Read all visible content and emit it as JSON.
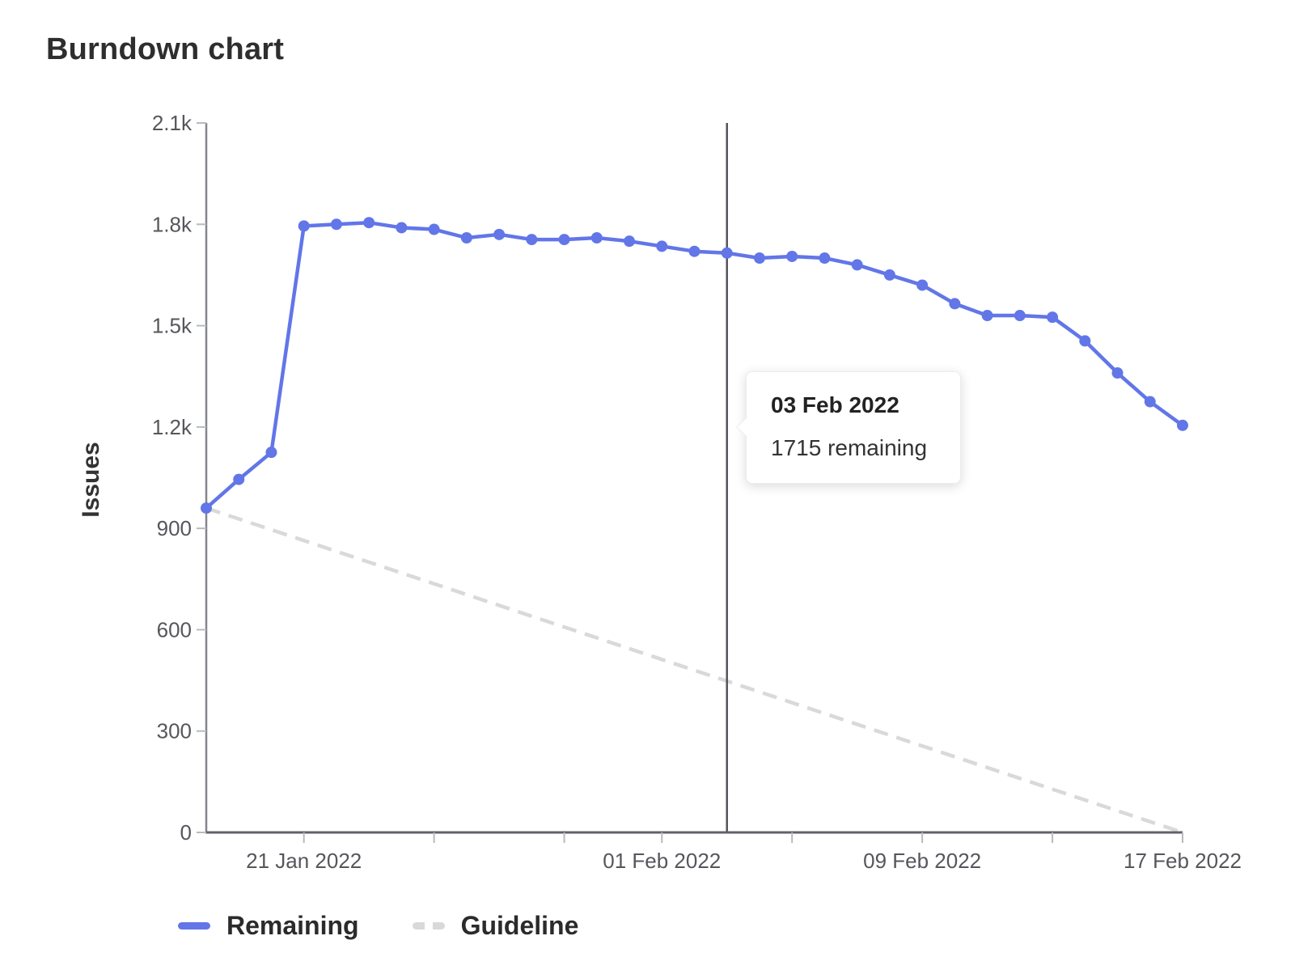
{
  "page": {
    "title": "Burndown chart"
  },
  "chart_data": {
    "type": "line",
    "title": "Burndown chart",
    "xlabel": "",
    "ylabel": "Issues",
    "ylim": [
      0,
      2100
    ],
    "grid": false,
    "legend_position": "bottom-left",
    "categories": [
      "18 Jan 2022",
      "19 Jan 2022",
      "20 Jan 2022",
      "21 Jan 2022",
      "22 Jan 2022",
      "23 Jan 2022",
      "24 Jan 2022",
      "25 Jan 2022",
      "26 Jan 2022",
      "27 Jan 2022",
      "28 Jan 2022",
      "29 Jan 2022",
      "30 Jan 2022",
      "31 Jan 2022",
      "01 Feb 2022",
      "02 Feb 2022",
      "03 Feb 2022",
      "04 Feb 2022",
      "05 Feb 2022",
      "06 Feb 2022",
      "07 Feb 2022",
      "08 Feb 2022",
      "09 Feb 2022",
      "10 Feb 2022",
      "11 Feb 2022",
      "12 Feb 2022",
      "13 Feb 2022",
      "14 Feb 2022",
      "15 Feb 2022",
      "16 Feb 2022",
      "17 Feb 2022"
    ],
    "y_ticks": [
      {
        "value": 0,
        "label": "0"
      },
      {
        "value": 300,
        "label": "300"
      },
      {
        "value": 600,
        "label": "600"
      },
      {
        "value": 900,
        "label": "900"
      },
      {
        "value": 1200,
        "label": "1.2k"
      },
      {
        "value": 1500,
        "label": "1.5k"
      },
      {
        "value": 1800,
        "label": "1.8k"
      },
      {
        "value": 2100,
        "label": "2.1k"
      }
    ],
    "x_ticks": [
      {
        "index": 3,
        "label": "21 Jan 2022"
      },
      {
        "index": 7,
        "label": ""
      },
      {
        "index": 11,
        "label": ""
      },
      {
        "index": 14,
        "label": "01 Feb 2022"
      },
      {
        "index": 18,
        "label": ""
      },
      {
        "index": 22,
        "label": "09 Feb 2022"
      },
      {
        "index": 26,
        "label": ""
      },
      {
        "index": 30,
        "label": "17 Feb 2022"
      }
    ],
    "series": [
      {
        "name": "Remaining",
        "style": "solid",
        "color": "#6276e8",
        "values": [
          960,
          1045,
          1125,
          1795,
          1800,
          1805,
          1790,
          1785,
          1760,
          1770,
          1755,
          1755,
          1760,
          1750,
          1735,
          1720,
          1715,
          1700,
          1705,
          1700,
          1680,
          1650,
          1620,
          1565,
          1530,
          1530,
          1525,
          1455,
          1360,
          1275,
          1205
        ]
      },
      {
        "name": "Guideline",
        "style": "dashed",
        "color": "#d9d9d9",
        "points": [
          {
            "index": 0,
            "value": 960
          },
          {
            "index": 30,
            "value": 0
          }
        ]
      }
    ],
    "hover": {
      "index": 16,
      "date": "03 Feb 2022",
      "value": 1715
    }
  },
  "tooltip": {
    "title": "03 Feb 2022",
    "body": "1715 remaining"
  },
  "legend": {
    "items": [
      {
        "label": "Remaining",
        "swatch": "solid",
        "color": "#6276e8"
      },
      {
        "label": "Guideline",
        "swatch": "dashed",
        "color": "#d9d9d9"
      }
    ]
  },
  "colors": {
    "remaining_line": "#6276e8",
    "guideline": "#d9d9d9",
    "hover_line": "#54545a",
    "y_axis": "#83858e",
    "x_axis": "#5f616b",
    "tick": "#b9bac0",
    "tick_text": "#56565c"
  }
}
